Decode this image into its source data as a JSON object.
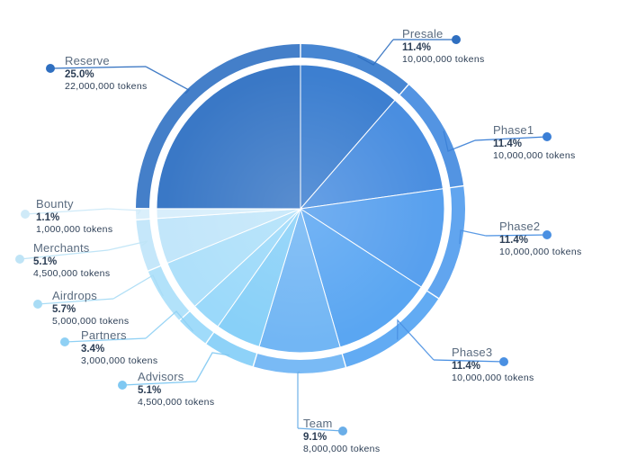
{
  "chart_data": {
    "type": "pie",
    "slices": [
      {
        "name": "Presale",
        "percent": "11.4%",
        "value": 11.4,
        "tokens": "10,000,000 tokens",
        "color": "#3d7fd0"
      },
      {
        "name": "Phase1",
        "percent": "11.4%",
        "value": 11.4,
        "tokens": "10,000,000 tokens",
        "color": "#4a8ee0"
      },
      {
        "name": "Phase2",
        "percent": "11.4%",
        "value": 11.4,
        "tokens": "10,000,000 tokens",
        "color": "#58a0ee"
      },
      {
        "name": "Phase3",
        "percent": "11.4%",
        "value": 11.4,
        "tokens": "10,000,000 tokens",
        "color": "#5aa6f2"
      },
      {
        "name": "Team",
        "percent": "9.1%",
        "value": 9.1,
        "tokens": "8,000,000 tokens",
        "color": "#72b6f4"
      },
      {
        "name": "Advisors",
        "percent": "5.1%",
        "value": 5.1,
        "tokens": "4,500,000 tokens",
        "color": "#88d0f8"
      },
      {
        "name": "Partners",
        "percent": "3.4%",
        "value": 3.4,
        "tokens": "3,000,000 tokens",
        "color": "#9bd9fa"
      },
      {
        "name": "Airdrops",
        "percent": "5.7%",
        "value": 5.7,
        "tokens": "5,000,000 tokens",
        "color": "#aee0fa"
      },
      {
        "name": "Merchants",
        "percent": "5.1%",
        "value": 5.1,
        "tokens": "4,500,000 tokens",
        "color": "#c2e6fa"
      },
      {
        "name": "Bounty",
        "percent": "1.1%",
        "value": 1.1,
        "tokens": "1,000,000 tokens",
        "color": "#d8eefb"
      },
      {
        "name": "Reserve",
        "percent": "25.0%",
        "value": 25.0,
        "tokens": "22,000,000 tokens",
        "color": "#3a78c6"
      }
    ]
  }
}
